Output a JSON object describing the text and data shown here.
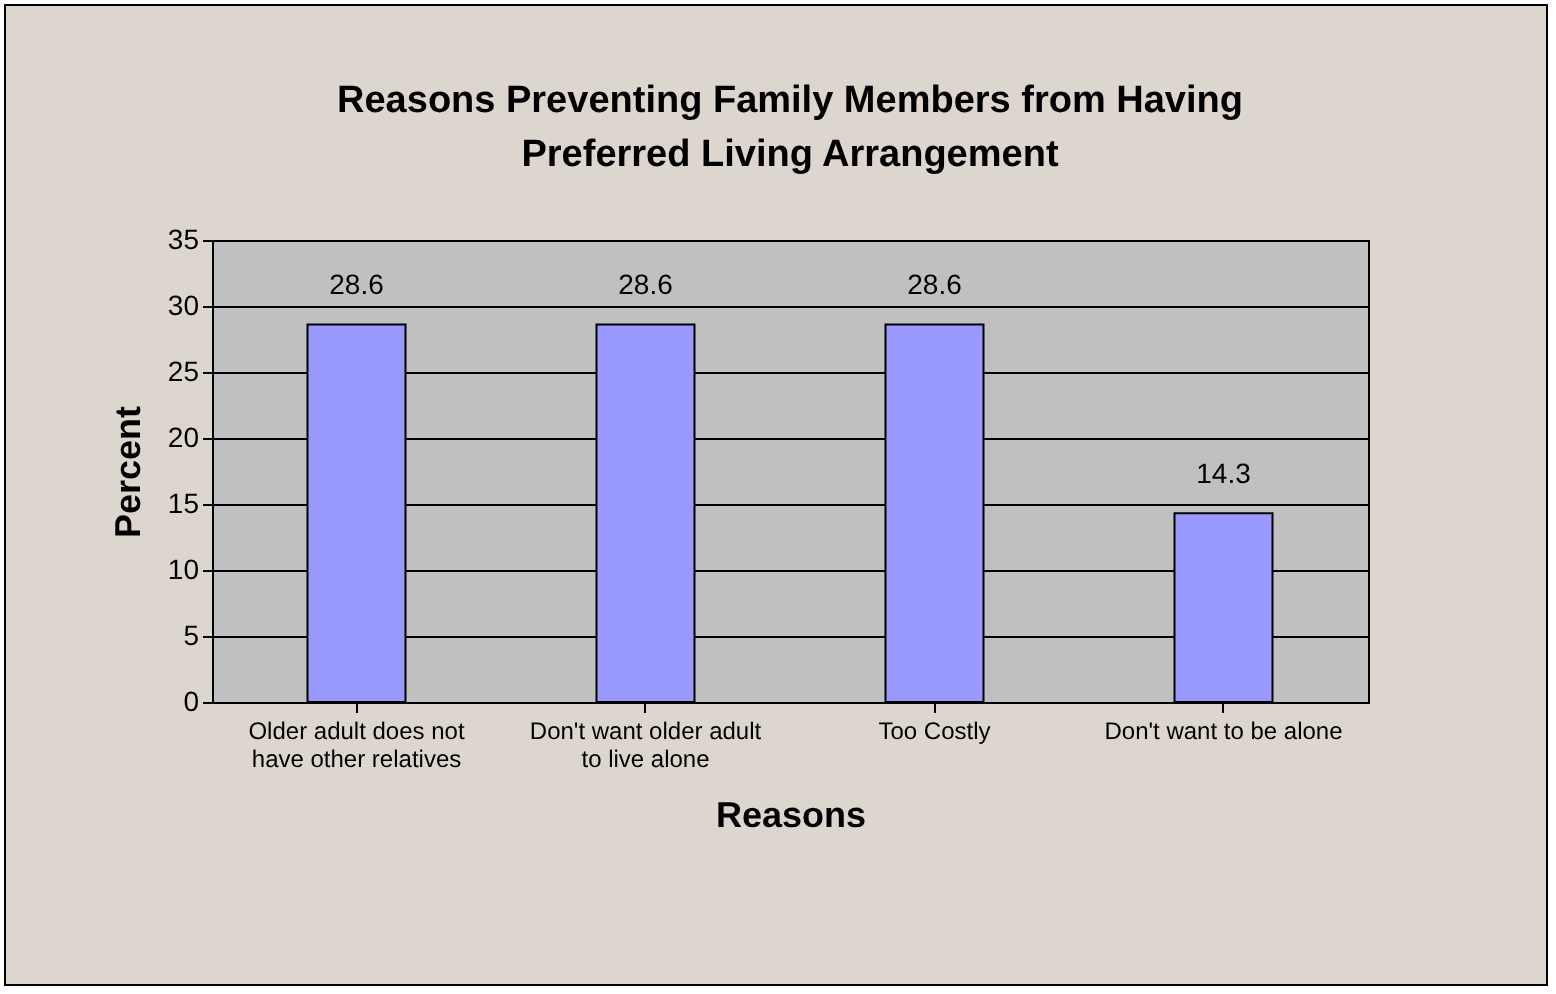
{
  "chart_data": {
    "type": "bar",
    "title": "Reasons Preventing Family Members from Having Preferred Living Arrangement",
    "xlabel": "Reasons",
    "ylabel": "Percent",
    "categories": [
      "Older adult does not have other relatives",
      "Don't want older adult to live alone",
      "Too Costly",
      "Don't want to be alone"
    ],
    "values": [
      28.6,
      28.6,
      28.6,
      14.3
    ],
    "color": "#9999ff",
    "ylim": [
      0,
      35
    ],
    "yticks": [
      0,
      5,
      10,
      15,
      20,
      25,
      30,
      35
    ],
    "grid": "y",
    "data_labels": true
  }
}
